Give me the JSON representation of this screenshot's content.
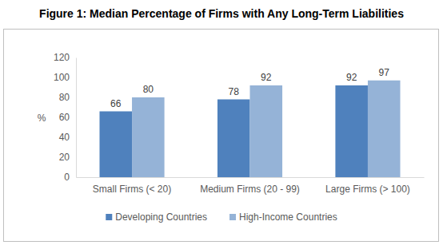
{
  "chart_data": {
    "type": "bar",
    "title": "Figure 1: Median Percentage of Firms with Any Long-Term Liabilities",
    "y_label": "%",
    "categories": [
      "Small Firms (< 20)",
      "Medium Firms (20 - 99)",
      "Large Firms (> 100)"
    ],
    "series": [
      {
        "name": "Developing Countries",
        "color": "#4f81bd",
        "values": [
          66,
          78,
          92
        ]
      },
      {
        "name": "High-Income Countries",
        "color": "#95b3d7",
        "values": [
          80,
          92,
          97
        ]
      }
    ],
    "ylim": [
      0,
      120
    ],
    "yticks": [
      0,
      20,
      40,
      60,
      80,
      100,
      120
    ],
    "grid": false,
    "data_labels": true,
    "legend": "bottom"
  }
}
